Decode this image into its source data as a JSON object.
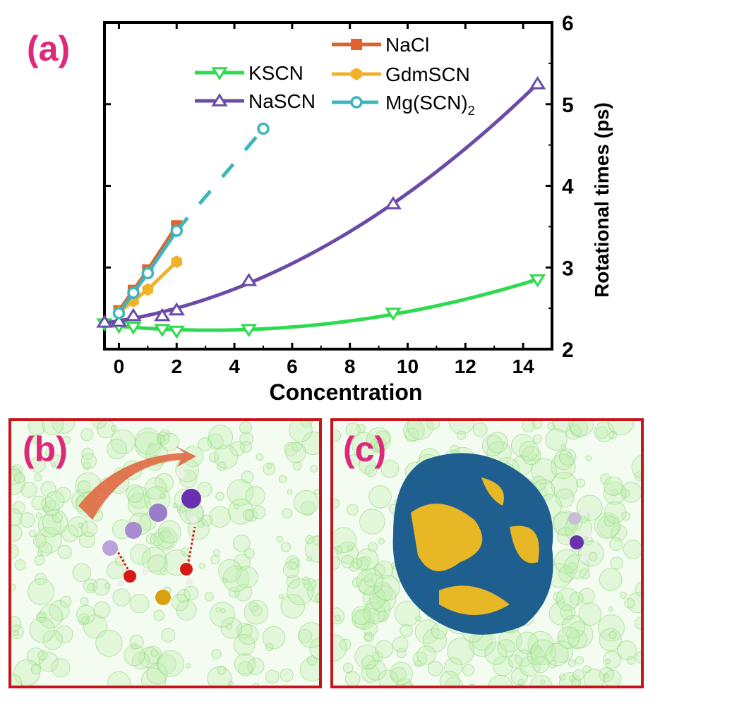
{
  "panel_labels": {
    "a": "(a)",
    "b": "(b)",
    "c": "(c)"
  },
  "chart_data": {
    "type": "line",
    "xlabel": "Concentration",
    "ylabel": "Rotational times (ps)",
    "xlim": [
      -0.5,
      15
    ],
    "ylim": [
      2,
      6
    ],
    "xticks": [
      0,
      2,
      4,
      6,
      8,
      10,
      12,
      14
    ],
    "yticks": [
      2,
      3,
      4,
      5,
      6
    ],
    "grid": false,
    "legend_placement": "top",
    "series": [
      {
        "name": "KSCN",
        "color": "#2edb4e",
        "marker": "triangle-down",
        "line": "quadratic-fit",
        "x": [
          -0.5,
          0,
          0.5,
          1.5,
          2,
          4.5,
          9.5,
          14.5
        ],
        "y": [
          2.31,
          2.28,
          2.27,
          2.24,
          2.22,
          2.24,
          2.44,
          2.85
        ]
      },
      {
        "name": "NaSCN",
        "color": "#6a4ca8",
        "marker": "triangle-up",
        "line": "quadratic-fit",
        "x": [
          -0.5,
          0,
          0.5,
          1.5,
          2,
          4.5,
          9.5,
          14.5
        ],
        "y": [
          2.33,
          2.34,
          2.41,
          2.41,
          2.48,
          2.84,
          3.78,
          5.25
        ]
      },
      {
        "name": "NaCl",
        "color": "#e0622e",
        "marker": "square",
        "line": "solid",
        "x": [
          0,
          0.5,
          1,
          2
        ],
        "y": [
          2.47,
          2.72,
          2.97,
          3.51
        ]
      },
      {
        "name": "GdmSCN",
        "color": "#f0b22a",
        "marker": "hexagon",
        "line": "solid",
        "x": [
          0,
          0.5,
          1,
          2
        ],
        "y": [
          2.45,
          2.59,
          2.73,
          3.07
        ]
      },
      {
        "name": "Mg(SCN)2",
        "color": "#3eb5be",
        "marker": "circle-open",
        "line": "solid-then-dashed",
        "x": [
          0,
          0.5,
          1,
          2,
          5
        ],
        "y": [
          2.44,
          2.69,
          2.93,
          3.45,
          4.7
        ]
      }
    ]
  }
}
